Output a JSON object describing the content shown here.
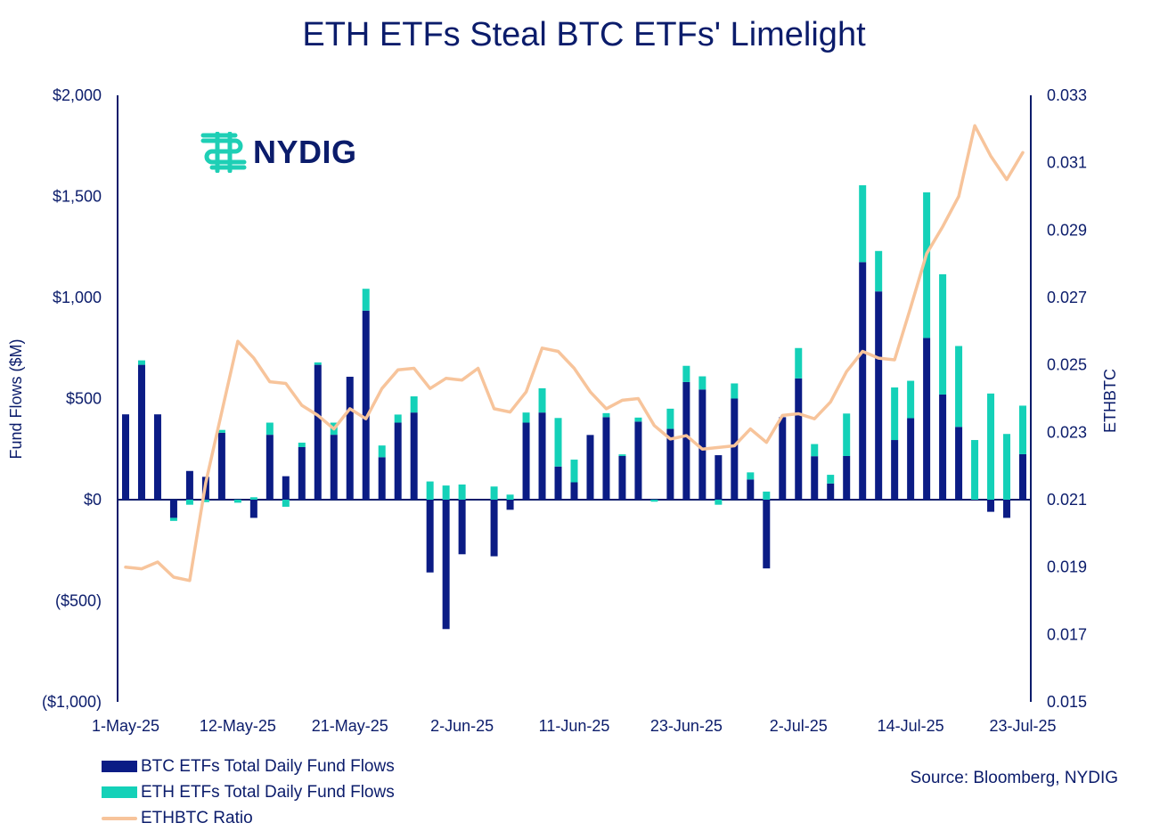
{
  "title": "ETH ETFs Steal BTC ETFs' Limelight",
  "logo": {
    "text": "NYDIG",
    "icon": "nydig-logo-icon",
    "icon_color": "#1ecfb5"
  },
  "source": "Source: Bloomberg, NYDIG",
  "colors": {
    "btc": "#0b1c85",
    "eth": "#14d1b8",
    "ratio": "#f7c49b",
    "axis": "#0b1c6b"
  },
  "legend": [
    {
      "label": "BTC ETFs Total Daily Fund Flows",
      "kind": "bar",
      "color": "#0b1c85"
    },
    {
      "label": "ETH ETFs Total Daily Fund Flows",
      "kind": "bar",
      "color": "#14d1b8"
    },
    {
      "label": "ETHBTC Ratio",
      "kind": "line",
      "color": "#f7c49b"
    }
  ],
  "chart_data": {
    "type": "bar",
    "title": "ETH ETFs Steal BTC ETFs' Limelight",
    "ylabel": "Fund Flows ($M)",
    "y2label": "ETHBTC",
    "ylim": [
      -1000,
      2000
    ],
    "y2lim": [
      0.015,
      0.033
    ],
    "yticks": [
      "($1,000)",
      "($500)",
      "$0",
      "$500",
      "$1,000",
      "$1,500",
      "$2,000"
    ],
    "ytick_values": [
      -1000,
      -500,
      0,
      500,
      1000,
      1500,
      2000
    ],
    "y2ticks": [
      "0.015",
      "0.017",
      "0.019",
      "0.021",
      "0.023",
      "0.025",
      "0.027",
      "0.029",
      "0.031",
      "0.033"
    ],
    "y2tick_values": [
      0.015,
      0.017,
      0.019,
      0.021,
      0.023,
      0.025,
      0.027,
      0.029,
      0.031,
      0.033
    ],
    "xtick_labels": [
      "1-May-25",
      "12-May-25",
      "21-May-25",
      "2-Jun-25",
      "11-Jun-25",
      "23-Jun-25",
      "2-Jul-25",
      "14-Jul-25",
      "23-Jul-25"
    ],
    "xtick_index": [
      0,
      7,
      14,
      21,
      28,
      35,
      42,
      49,
      56
    ],
    "series": [
      {
        "name": "BTC ETFs Total Daily Fund Flows",
        "type": "bar",
        "stack": "flows",
        "values": [
          422,
          667,
          422,
          -90,
          142,
          113,
          331,
          0,
          -90,
          321,
          116,
          260,
          667,
          321,
          608,
          935,
          210,
          381,
          431,
          -360,
          -640,
          -270,
          0,
          -280,
          -50,
          381,
          431,
          164,
          86,
          320,
          408,
          216,
          386,
          0,
          350,
          582,
          545,
          220,
          500,
          100,
          -340,
          408,
          600,
          215,
          80,
          216,
          1175,
          1030,
          295,
          403,
          800,
          520,
          360,
          0,
          -60,
          -90,
          225
        ]
      },
      {
        "name": "ETH ETFs Total Daily Fund Flows",
        "type": "bar",
        "stack": "flows",
        "values": [
          0,
          22,
          0,
          -15,
          -25,
          -12,
          14,
          -15,
          12,
          60,
          -35,
          22,
          12,
          60,
          0,
          108,
          58,
          40,
          80,
          90,
          70,
          75,
          0,
          65,
          25,
          50,
          120,
          240,
          112,
          0,
          20,
          8,
          20,
          -10,
          100,
          80,
          65,
          -25,
          75,
          35,
          40,
          0,
          150,
          60,
          43,
          210,
          380,
          200,
          260,
          185,
          720,
          595,
          400,
          295,
          525,
          325,
          240
        ]
      },
      {
        "name": "ETHBTC Ratio",
        "type": "line",
        "axis": "right",
        "values": [
          0.019,
          0.01895,
          0.01915,
          0.0187,
          0.0186,
          0.0215,
          0.0236,
          0.0257,
          0.0252,
          0.0245,
          0.02445,
          0.0238,
          0.0235,
          0.0231,
          0.0237,
          0.0234,
          0.0243,
          0.02485,
          0.0249,
          0.0243,
          0.0246,
          0.02455,
          0.0249,
          0.0237,
          0.0236,
          0.0242,
          0.0255,
          0.0254,
          0.0249,
          0.0242,
          0.0237,
          0.02395,
          0.024,
          0.0232,
          0.0228,
          0.0229,
          0.0225,
          0.02255,
          0.0226,
          0.0231,
          0.0227,
          0.0235,
          0.02355,
          0.0234,
          0.0239,
          0.0248,
          0.0254,
          0.0252,
          0.02515,
          0.0267,
          0.0283,
          0.0291,
          0.03,
          0.0321,
          0.0312,
          0.0305,
          0.0313
        ]
      }
    ]
  }
}
